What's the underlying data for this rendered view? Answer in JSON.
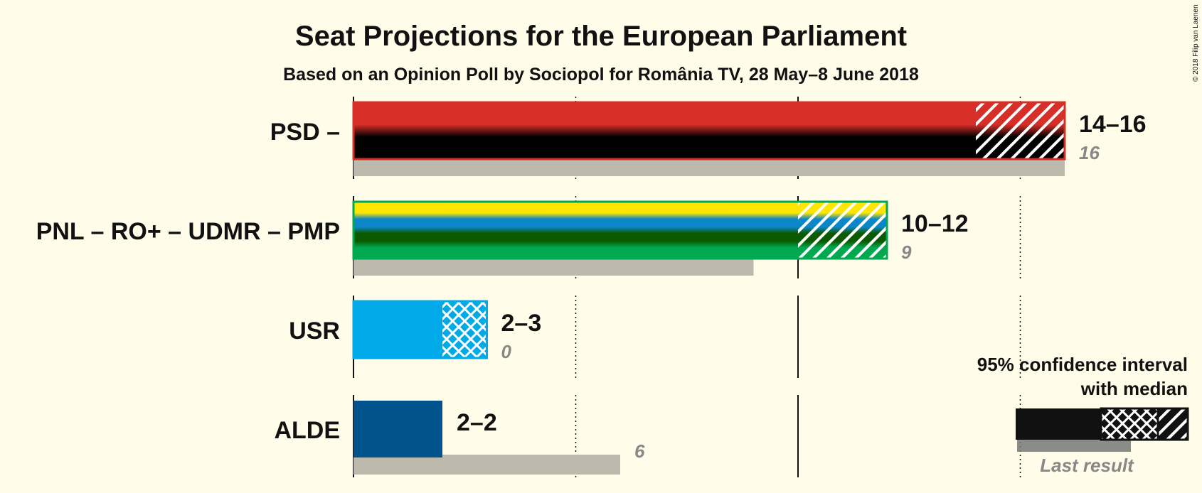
{
  "title": "Seat Projections for the European Parliament",
  "subtitle": "Based on an Opinion Poll by Sociopol for România TV, 28 May–8 June 2018",
  "copyright": "© 2018 Filip van Laenen",
  "legend": {
    "title_line1": "95% confidence interval",
    "title_line2": "with median",
    "last_result": "Last result"
  },
  "chart_data": {
    "type": "bar",
    "title": "Seat Projections for the European Parliament",
    "subtitle": "Based on an Opinion Poll by Sociopol for România TV, 28 May–8 June 2018",
    "xlim": [
      0,
      16
    ],
    "gridlines": [
      5,
      10,
      15
    ],
    "series": [
      {
        "party": "PSD –",
        "low": 14,
        "median": 14,
        "high": 16,
        "last_result": 16,
        "range_label": "14–16",
        "last_label": "16",
        "colors": [
          "#D72E27",
          "#000000"
        ],
        "pattern": "diagonal"
      },
      {
        "party": "PNL – RO+ – UDMR – PMP",
        "low": 10,
        "median": 10,
        "high": 12,
        "last_result": 9,
        "range_label": "10–12",
        "last_label": "9",
        "colors": [
          "#FFE600",
          "#0A86C9",
          "#0B5A00",
          "#00A84F"
        ],
        "pattern": "diagonal"
      },
      {
        "party": "USR",
        "low": 2,
        "median": 2,
        "high": 3,
        "last_result": 0,
        "range_label": "2–3",
        "last_label": "0",
        "colors": [
          "#00A9E7"
        ],
        "pattern": "crosshatch"
      },
      {
        "party": "ALDE",
        "low": 2,
        "median": 2,
        "high": 2,
        "last_result": 6,
        "range_label": "2–2",
        "last_label": "6",
        "colors": [
          "#00538C"
        ],
        "pattern": "none"
      }
    ]
  }
}
